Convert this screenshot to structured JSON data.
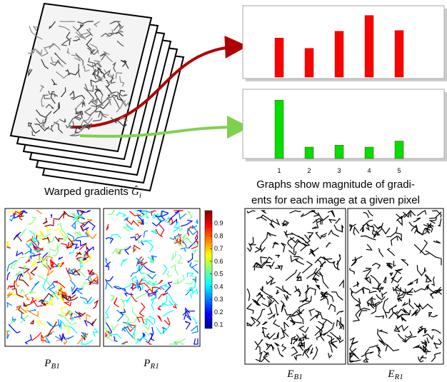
{
  "stack_caption": {
    "text": "Warped gradients",
    "symbol": "Ĝ",
    "sub": "i"
  },
  "charts": [
    {
      "type": "bar",
      "color": "#ff0000",
      "values": [
        0.57,
        0.42,
        0.67,
        0.9,
        0.68
      ],
      "ylim": [
        0,
        1
      ]
    },
    {
      "type": "bar",
      "color": "#00e000",
      "categories": [
        "1",
        "2",
        "3",
        "4",
        "5"
      ],
      "values": [
        0.87,
        0.17,
        0.2,
        0.17,
        0.26
      ],
      "ylim": [
        0,
        1
      ]
    }
  ],
  "graph_caption": [
    "Graphs show magnitude of gradi-",
    "ents for each image at a given pixel"
  ],
  "colorbar": {
    "ylim": [
      0.07,
      1
    ],
    "ticks": [
      0.1,
      0.2,
      0.3,
      0.4,
      0.5,
      0.6,
      0.7,
      0.8,
      0.9
    ]
  },
  "panels": [
    {
      "main": "P",
      "sub": "B1"
    },
    {
      "main": "P",
      "sub": "R1"
    },
    {
      "main": "E",
      "sub": "B1"
    },
    {
      "main": "E",
      "sub": "R1"
    }
  ]
}
